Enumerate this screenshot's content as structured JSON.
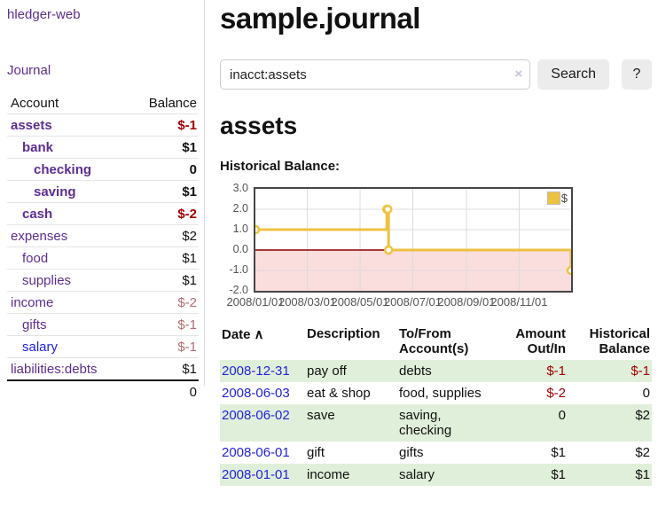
{
  "sidebar": {
    "brand": "hledger-web",
    "journal_link": "Journal",
    "accounts_table": {
      "headers": {
        "account": "Account",
        "balance": "Balance"
      },
      "rows": [
        {
          "name": "assets",
          "balance": "$-1",
          "depth": 1,
          "bold": true,
          "name_class": "",
          "amount_class": "neg"
        },
        {
          "name": "bank",
          "balance": "$1",
          "depth": 2,
          "bold": true,
          "name_class": "",
          "amount_class": ""
        },
        {
          "name": "checking",
          "balance": "0",
          "depth": 3,
          "bold": true,
          "name_class": "",
          "amount_class": ""
        },
        {
          "name": "saving",
          "balance": "$1",
          "depth": 3,
          "bold": true,
          "name_class": "",
          "amount_class": ""
        },
        {
          "name": "cash",
          "balance": "$-2",
          "depth": 2,
          "bold": true,
          "name_class": "",
          "amount_class": "neg"
        },
        {
          "name": "expenses",
          "balance": "$2",
          "depth": 1,
          "bold": false,
          "name_class": "",
          "amount_class": ""
        },
        {
          "name": "food",
          "balance": "$1",
          "depth": 2,
          "bold": false,
          "name_class": "",
          "amount_class": ""
        },
        {
          "name": "supplies",
          "balance": "$1",
          "depth": 2,
          "bold": false,
          "name_class": "",
          "amount_class": ""
        },
        {
          "name": "income",
          "balance": "$-2",
          "depth": 1,
          "bold": false,
          "name_class": "",
          "amount_class": "neg-muted"
        },
        {
          "name": "gifts",
          "balance": "$-1",
          "depth": 2,
          "bold": false,
          "name_class": "",
          "amount_class": "neg-muted"
        },
        {
          "name": "salary",
          "balance": "$-1",
          "depth": 2,
          "bold": false,
          "name_class": "blue",
          "amount_class": "neg-muted"
        },
        {
          "name": "liabilities:debts",
          "balance": "$1",
          "depth": 1,
          "bold": false,
          "name_class": "",
          "amount_class": ""
        }
      ],
      "total": "0"
    }
  },
  "header": {
    "title": "sample.journal"
  },
  "search": {
    "value": "inacct:assets",
    "clear_icon": "×",
    "button": "Search",
    "help_button": "?"
  },
  "account_page": {
    "heading": "assets",
    "chart_label": "Historical Balance:"
  },
  "chart_data": {
    "type": "line",
    "title": "Historical Balance",
    "step": true,
    "series": [
      {
        "name": "$",
        "color": "#edc240",
        "points": [
          [
            "2008-01-01",
            1
          ],
          [
            "2008-06-01",
            2
          ],
          [
            "2008-06-02",
            2
          ],
          [
            "2008-06-03",
            0
          ],
          [
            "2008-12-31",
            -1
          ]
        ]
      }
    ],
    "ylim": [
      -2,
      3
    ],
    "yticks": [
      "3.0",
      "2.0",
      "1.0",
      "0.0",
      "-1.0",
      "-2.0"
    ],
    "xticks": [
      "2008/01/01",
      "2008/03/01",
      "2008/05/01",
      "2008/07/01",
      "2008/09/01",
      "2008/11/01"
    ],
    "x_range": [
      "2008-01-01",
      "2008-12-31"
    ],
    "grid": true,
    "legend_position": "top-right",
    "negative_fill": "#fadddd",
    "zero_line_color": "#8b0000",
    "grid_color": "#dcdcdc",
    "border_color": "#464646"
  },
  "register_table": {
    "sort_icon": "∧",
    "headers": [
      [
        "Date"
      ],
      [
        "Description"
      ],
      [
        "To/From",
        "Account(s)"
      ],
      [
        "Amount",
        "Out/In"
      ],
      [
        "Historical",
        "Balance"
      ]
    ],
    "rows": [
      {
        "date": "2008-12-31",
        "description": "pay off",
        "accounts": "debts",
        "amount": "$-1",
        "balance": "$-1"
      },
      {
        "date": "2008-06-03",
        "description": "eat & shop",
        "accounts": "food, supplies",
        "amount": "$-2",
        "balance": "0"
      },
      {
        "date": "2008-06-02",
        "description": "save",
        "accounts": "saving,\nchecking",
        "amount": "0",
        "balance": "$2"
      },
      {
        "date": "2008-06-01",
        "description": "gift",
        "accounts": "gifts",
        "amount": "$1",
        "balance": "$2"
      },
      {
        "date": "2008-01-01",
        "description": "income",
        "accounts": "salary",
        "amount": "$1",
        "balance": "$1"
      }
    ]
  },
  "colors": {
    "link_purple": "#5c2d91",
    "link_blue": "#2222dd",
    "negative_strong": "#a40000",
    "negative_muted": "#b36d6d",
    "row_green": "#e0efda",
    "series_gold": "#edc240",
    "negative_region": "#fadddd",
    "zero_line": "#8b0000"
  }
}
